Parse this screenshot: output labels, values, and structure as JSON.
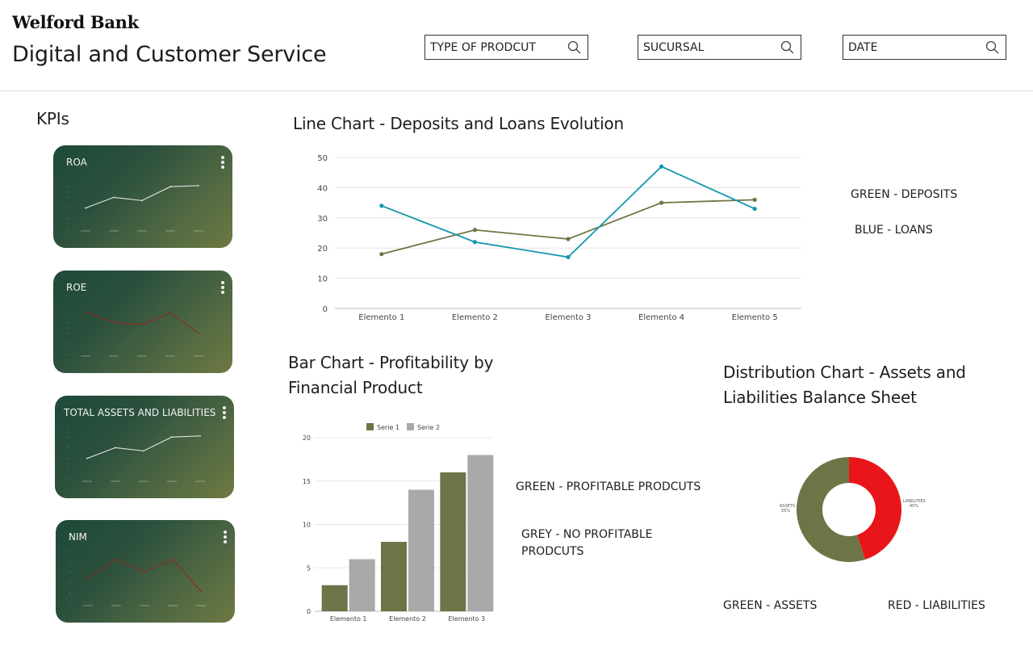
{
  "header": {
    "brand": "Welford Bank",
    "title": "Digital and Customer Service",
    "filters": [
      "TYPE OF PRODCUT",
      "SUCURSAL",
      "DATE"
    ]
  },
  "kpis": {
    "title": "KPIs",
    "cards": [
      {
        "label": "ROA",
        "line_color": "#e6e6e6",
        "values": [
          2,
          3,
          2.7,
          4,
          4.1
        ]
      },
      {
        "label": "ROE",
        "line_color": "#8b2a22",
        "values": [
          4,
          3,
          2.8,
          3.9,
          2
        ]
      },
      {
        "label": "TOTAL ASSETS AND LIABILITIES",
        "line_color": "#e6e6e6",
        "values": [
          2,
          3,
          2.7,
          4,
          4.1
        ]
      },
      {
        "label": "NIM",
        "line_color": "#8b2a22",
        "values": [
          2.4,
          4.2,
          3,
          4.2,
          1.2
        ]
      }
    ]
  },
  "line_section": {
    "title": "Line Chart - Deposits and Loans Evolution",
    "legend": [
      "GREEN - DEPOSITS",
      "BLUE - LOANS"
    ]
  },
  "bar_section": {
    "title": "Bar Chart - Profitability by Financial Product",
    "legend": [
      "GREEN - PROFITABLE PRODCUTS",
      "GREY - NO PROFITABLE PRODCUTS"
    ]
  },
  "donut_section": {
    "title": "Distribution Chart - Assets and Liabilities Balance Sheet",
    "legend": [
      "GREEN - ASSETS",
      "RED - LIABILITIES"
    ]
  },
  "chart_data": [
    {
      "type": "line",
      "categories": [
        "Elemento 1",
        "Elemento 2",
        "Elemento 3",
        "Elemento 4",
        "Elemento 5"
      ],
      "series": [
        {
          "color": "#6f7544",
          "values": [
            18,
            26,
            23,
            35,
            36
          ]
        },
        {
          "color": "#1497ae",
          "values": [
            34,
            22,
            17,
            47,
            33
          ]
        }
      ],
      "ylim": [
        0,
        50
      ],
      "yticks": [
        0,
        10,
        20,
        30,
        40,
        50
      ],
      "grid": true
    },
    {
      "type": "bar",
      "categories": [
        "Elemento 1",
        "Elemento 2",
        "Elemento 3"
      ],
      "series": [
        {
          "name": "Serie 1",
          "color": "#6b7548",
          "values": [
            3,
            8,
            16
          ]
        },
        {
          "name": "Serie 2",
          "color": "#a9a9a9",
          "values": [
            6,
            14,
            18
          ]
        }
      ],
      "ylim": [
        0,
        20
      ],
      "yticks": [
        0,
        5,
        10,
        15,
        20
      ],
      "legend_position": "top",
      "grid": true
    },
    {
      "type": "pie",
      "donut": true,
      "slices": [
        {
          "label": "LIABILITIES",
          "value": 45,
          "percent_label": "45%",
          "color": "#e8161a"
        },
        {
          "label": "ASSETS",
          "value": 55,
          "percent_label": "55%",
          "color": "#6d7547"
        }
      ]
    }
  ]
}
